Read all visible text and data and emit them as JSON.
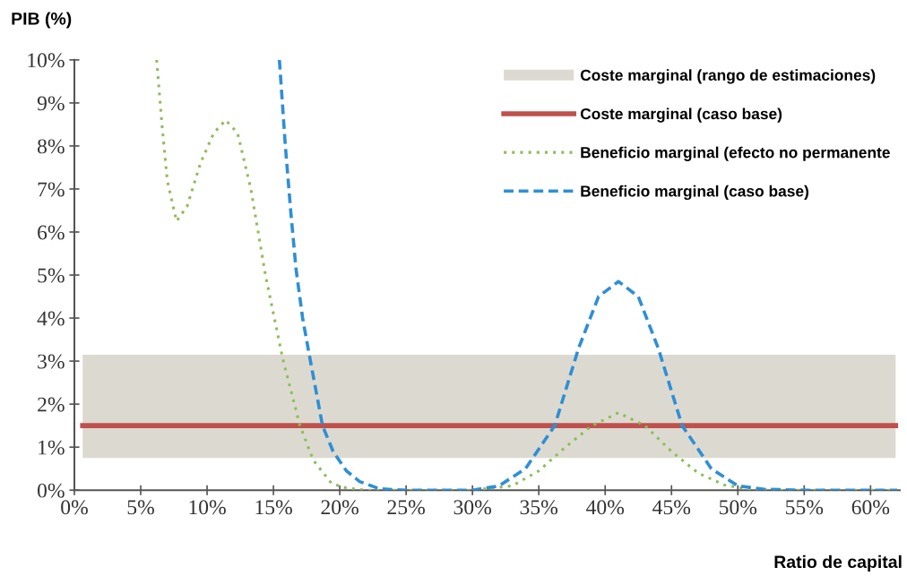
{
  "chart_data": {
    "type": "line",
    "ylabel": "PIB (%)",
    "xlabel": "Ratio de capital",
    "xlim": [
      0,
      62.2
    ],
    "ylim": [
      0,
      10
    ],
    "xticks": [
      {
        "value": 0,
        "label": "0%"
      },
      {
        "value": 5,
        "label": "5%"
      },
      {
        "value": 10,
        "label": "10%"
      },
      {
        "value": 15,
        "label": "15%"
      },
      {
        "value": 20,
        "label": "20%"
      },
      {
        "value": 25,
        "label": "25%"
      },
      {
        "value": 30,
        "label": "30%"
      },
      {
        "value": 35,
        "label": "35%"
      },
      {
        "value": 40,
        "label": "40%"
      },
      {
        "value": 45,
        "label": "45%"
      },
      {
        "value": 50,
        "label": "50%"
      },
      {
        "value": 55,
        "label": "55%"
      },
      {
        "value": 60,
        "label": "60%"
      }
    ],
    "yticks": [
      {
        "value": 0,
        "label": "0%"
      },
      {
        "value": 1,
        "label": "1%"
      },
      {
        "value": 2,
        "label": "2%"
      },
      {
        "value": 3,
        "label": "3%"
      },
      {
        "value": 4,
        "label": "4%"
      },
      {
        "value": 5,
        "label": "5%"
      },
      {
        "value": 6,
        "label": "6%"
      },
      {
        "value": 7,
        "label": "7%"
      },
      {
        "value": 8,
        "label": "8%"
      },
      {
        "value": 9,
        "label": "9%"
      },
      {
        "value": 10,
        "label": "10%"
      }
    ],
    "grid": false,
    "legend": "top right",
    "marker": "none",
    "bands": [
      {
        "axis": "y",
        "from": 0.75,
        "to": 3.15,
        "label": "Coste marginal (rango de estimaciones)",
        "color": "#dcdad0"
      }
    ],
    "ref_lines": [
      {
        "axis": "y",
        "value": 1.5,
        "label": "Coste marginal (caso base)",
        "color": "#c0504d",
        "line_style": "solid"
      }
    ],
    "series": [
      {
        "name": "Beneficio marginal (efecto no permanente",
        "color": "#8fbc5a",
        "line_style": "dotted",
        "x": [
          6.2,
          6.6,
          7.0,
          7.7,
          8.5,
          9.5,
          10.5,
          11.4,
          12.3,
          13.3,
          14.4,
          15.7,
          17.0,
          18.0,
          19.4,
          20.5,
          22,
          25,
          30,
          33,
          35,
          37,
          39,
          41,
          43,
          45,
          47,
          49,
          51,
          53,
          62
        ],
        "values": [
          10,
          8.5,
          7.2,
          6.25,
          6.6,
          7.6,
          8.3,
          8.6,
          8.3,
          7.0,
          5.0,
          3.06,
          1.5,
          0.7,
          0.15,
          0.05,
          0,
          0,
          0,
          0.1,
          0.45,
          1.0,
          1.5,
          1.8,
          1.5,
          0.9,
          0.4,
          0.12,
          0.02,
          0,
          0
        ]
      },
      {
        "name": "Beneficio marginal (caso base)",
        "color": "#2e8fd6",
        "line_style": "dashed",
        "x": [
          15.45,
          15.9,
          16.3,
          16.7,
          17.2,
          17.7,
          18.7,
          19.5,
          20.5,
          21.5,
          23,
          25,
          30,
          32,
          34,
          36.2,
          38,
          39.5,
          41,
          42.5,
          44,
          45.8,
          48,
          50,
          52,
          55,
          62
        ],
        "values": [
          10,
          8,
          6.5,
          5.15,
          4.0,
          3.15,
          1.5,
          0.9,
          0.45,
          0.2,
          0.03,
          0,
          0,
          0.1,
          0.5,
          1.5,
          3.3,
          4.5,
          4.85,
          4.5,
          3.3,
          1.5,
          0.5,
          0.1,
          0.02,
          0,
          0
        ]
      }
    ]
  }
}
